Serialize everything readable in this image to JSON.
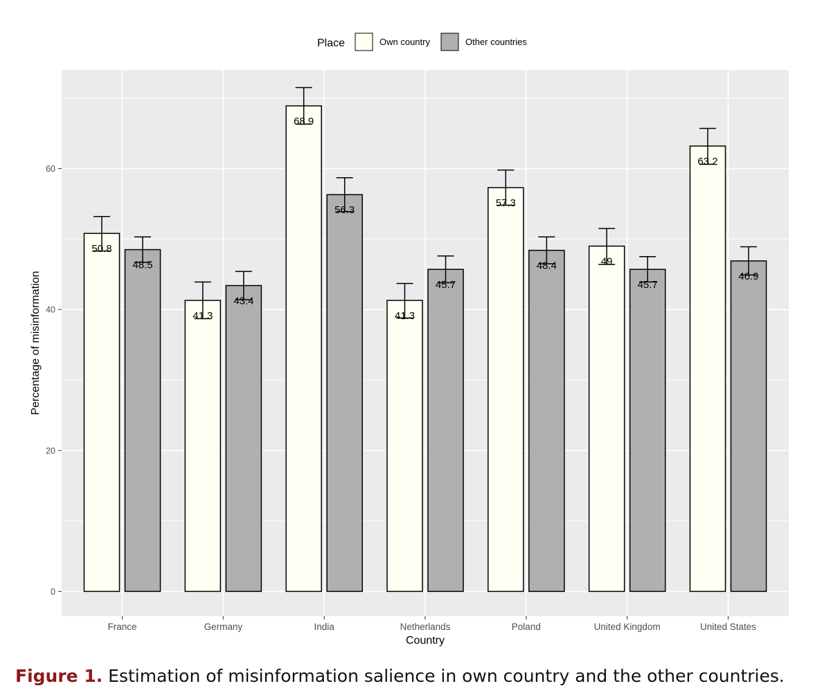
{
  "chart_data": {
    "type": "bar",
    "xlabel": "Country",
    "ylabel": "Percentage of misinformation",
    "ylim": [
      -3.5,
      74
    ],
    "yticks": [
      0,
      20,
      40,
      60
    ],
    "grid": true,
    "legend_position": "top-center",
    "legend": {
      "title": "Place",
      "entries": [
        "Own country",
        "Other countries"
      ]
    },
    "categories": [
      "France",
      "Germany",
      "India",
      "Netherlands",
      "Poland",
      "United Kingdom",
      "United States"
    ],
    "series": [
      {
        "name": "Own country",
        "color": "#fffff3",
        "values": [
          50.8,
          41.3,
          68.9,
          41.3,
          57.3,
          49,
          63.2
        ],
        "error_low": [
          48.3,
          38.7,
          66.3,
          38.8,
          54.8,
          46.4,
          60.6
        ],
        "error_high": [
          53.2,
          43.9,
          71.5,
          43.7,
          59.8,
          51.5,
          65.7
        ]
      },
      {
        "name": "Other countries",
        "color": "#b0b0b0",
        "values": [
          48.5,
          43.4,
          56.3,
          45.7,
          48.4,
          45.7,
          46.9
        ],
        "error_low": [
          46.7,
          41.4,
          53.9,
          43.8,
          46.5,
          43.9,
          44.9
        ],
        "error_high": [
          50.3,
          45.4,
          58.7,
          47.6,
          50.3,
          47.5,
          48.9
        ]
      }
    ],
    "data_labels": [
      [
        "50.8",
        "41.3",
        "68.9",
        "41.3",
        "57.3",
        "49",
        "63.2"
      ],
      [
        "48.5",
        "43.4",
        "56.3",
        "45.7",
        "48.4",
        "45.7",
        "46.9"
      ]
    ]
  },
  "caption": {
    "label": "Figure 1.",
    "text": " Estimation of misinformation salience in own country and the other countries."
  },
  "colors": {
    "panel_background": "#ebebeb",
    "gridline": "#ffffff",
    "bar_outline": "#000000",
    "caption_label": "#8b1a1a"
  }
}
